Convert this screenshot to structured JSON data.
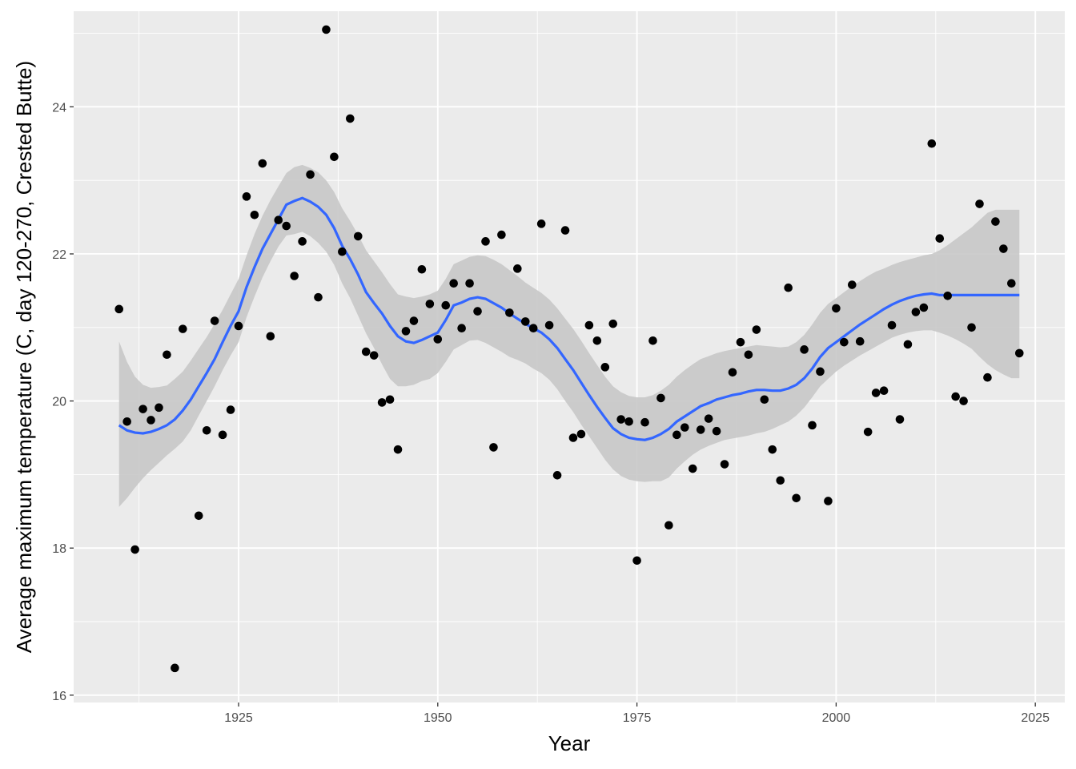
{
  "chart_data": {
    "type": "scatter",
    "title": "",
    "xlabel": "Year",
    "ylabel": "Average maximum temperature (C, day 120-270, Crested Butte)",
    "xlim": [
      1904.3,
      2028.7
    ],
    "ylim": [
      15.9,
      25.3
    ],
    "xticks": [
      "1925",
      "1950",
      "1975",
      "2000",
      "2025"
    ],
    "yticks": [
      "16",
      "18",
      "20",
      "22",
      "24"
    ],
    "grid": true,
    "legend": "none",
    "colors": {
      "panel": "#ebebeb",
      "grid": "#ffffff",
      "points": "#000000",
      "smooth": "#3366ff",
      "ribbon": "#c8c8c8"
    },
    "points": [
      [
        1910,
        21.25
      ],
      [
        1911,
        19.72
      ],
      [
        1912,
        17.98
      ],
      [
        1913,
        19.89
      ],
      [
        1914,
        19.74
      ],
      [
        1915,
        19.91
      ],
      [
        1916,
        20.63
      ],
      [
        1917,
        16.37
      ],
      [
        1918,
        20.98
      ],
      [
        1920,
        18.44
      ],
      [
        1921,
        19.6
      ],
      [
        1922,
        21.09
      ],
      [
        1923,
        19.54
      ],
      [
        1924,
        19.88
      ],
      [
        1925,
        21.02
      ],
      [
        1926,
        22.78
      ],
      [
        1927,
        22.53
      ],
      [
        1928,
        23.23
      ],
      [
        1929,
        20.88
      ],
      [
        1930,
        22.46
      ],
      [
        1931,
        22.38
      ],
      [
        1932,
        21.7
      ],
      [
        1933,
        22.17
      ],
      [
        1934,
        23.08
      ],
      [
        1935,
        21.41
      ],
      [
        1936,
        25.05
      ],
      [
        1937,
        23.32
      ],
      [
        1938,
        22.03
      ],
      [
        1939,
        23.84
      ],
      [
        1940,
        22.24
      ],
      [
        1941,
        20.67
      ],
      [
        1942,
        20.62
      ],
      [
        1943,
        19.98
      ],
      [
        1944,
        20.02
      ],
      [
        1945,
        19.34
      ],
      [
        1946,
        20.95
      ],
      [
        1947,
        21.09
      ],
      [
        1948,
        21.79
      ],
      [
        1949,
        21.32
      ],
      [
        1950,
        20.84
      ],
      [
        1951,
        21.3
      ],
      [
        1952,
        21.6
      ],
      [
        1953,
        20.99
      ],
      [
        1954,
        21.6
      ],
      [
        1955,
        21.22
      ],
      [
        1956,
        22.17
      ],
      [
        1957,
        19.37
      ],
      [
        1958,
        22.26
      ],
      [
        1959,
        21.2
      ],
      [
        1960,
        21.8
      ],
      [
        1961,
        21.08
      ],
      [
        1962,
        20.99
      ],
      [
        1963,
        22.41
      ],
      [
        1964,
        21.03
      ],
      [
        1965,
        18.99
      ],
      [
        1966,
        22.32
      ],
      [
        1967,
        19.5
      ],
      [
        1968,
        19.55
      ],
      [
        1969,
        21.03
      ],
      [
        1970,
        20.82
      ],
      [
        1971,
        20.46
      ],
      [
        1972,
        21.05
      ],
      [
        1973,
        19.75
      ],
      [
        1974,
        19.72
      ],
      [
        1975,
        17.83
      ],
      [
        1976,
        19.71
      ],
      [
        1977,
        20.82
      ],
      [
        1978,
        20.04
      ],
      [
        1979,
        18.31
      ],
      [
        1980,
        19.54
      ],
      [
        1981,
        19.64
      ],
      [
        1982,
        19.08
      ],
      [
        1983,
        19.61
      ],
      [
        1984,
        19.76
      ],
      [
        1985,
        19.59
      ],
      [
        1986,
        19.14
      ],
      [
        1987,
        20.39
      ],
      [
        1988,
        20.8
      ],
      [
        1989,
        20.63
      ],
      [
        1990,
        20.97
      ],
      [
        1991,
        20.02
      ],
      [
        1992,
        19.34
      ],
      [
        1993,
        18.92
      ],
      [
        1994,
        21.54
      ],
      [
        1995,
        18.68
      ],
      [
        1996,
        20.7
      ],
      [
        1997,
        19.67
      ],
      [
        1998,
        20.4
      ],
      [
        1999,
        18.64
      ],
      [
        2000,
        21.26
      ],
      [
        2001,
        20.8
      ],
      [
        2002,
        21.58
      ],
      [
        2003,
        20.81
      ],
      [
        2004,
        19.58
      ],
      [
        2005,
        20.11
      ],
      [
        2006,
        20.14
      ],
      [
        2007,
        21.03
      ],
      [
        2008,
        19.75
      ],
      [
        2009,
        20.77
      ],
      [
        2010,
        21.21
      ],
      [
        2011,
        21.27
      ],
      [
        2012,
        23.5
      ],
      [
        2013,
        22.21
      ],
      [
        2014,
        21.43
      ],
      [
        2015,
        20.06
      ],
      [
        2016,
        20.0
      ],
      [
        2017,
        21.0
      ],
      [
        2018,
        22.68
      ],
      [
        2019,
        20.32
      ],
      [
        2020,
        22.44
      ],
      [
        2021,
        22.07
      ],
      [
        2022,
        21.6
      ],
      [
        2023,
        20.65
      ]
    ],
    "smooth": {
      "x": [
        1910,
        1911,
        1912,
        1913,
        1914,
        1915,
        1916,
        1917,
        1918,
        1919,
        1920,
        1921,
        1922,
        1923,
        1924,
        1925,
        1926,
        1927,
        1928,
        1929,
        1930,
        1931,
        1932,
        1933,
        1934,
        1935,
        1936,
        1937,
        1938,
        1939,
        1940,
        1941,
        1942,
        1943,
        1944,
        1945,
        1946,
        1947,
        1948,
        1949,
        1950,
        1951,
        1952,
        1953,
        1954,
        1955,
        1956,
        1957,
        1958,
        1959,
        1960,
        1961,
        1962,
        1963,
        1964,
        1965,
        1966,
        1967,
        1968,
        1969,
        1970,
        1971,
        1972,
        1973,
        1974,
        1975,
        1976,
        1977,
        1978,
        1979,
        1980,
        1981,
        1982,
        1983,
        1984,
        1985,
        1986,
        1987,
        1988,
        1989,
        1990,
        1991,
        1992,
        1993,
        1994,
        1995,
        1996,
        1997,
        1998,
        1999,
        2000,
        2001,
        2002,
        2003,
        2004,
        2005,
        2006,
        2007,
        2008,
        2009,
        2010,
        2011,
        2012,
        2013,
        2014,
        2015,
        2016,
        2017,
        2018,
        2019,
        2020,
        2021,
        2022,
        2023
      ],
      "y": [
        19.67,
        19.6,
        19.57,
        19.56,
        19.58,
        19.62,
        19.67,
        19.75,
        19.87,
        20.02,
        20.2,
        20.38,
        20.57,
        20.8,
        21.02,
        21.22,
        21.55,
        21.82,
        22.07,
        22.27,
        22.47,
        22.67,
        22.72,
        22.76,
        22.71,
        22.64,
        22.53,
        22.35,
        22.11,
        21.93,
        21.72,
        21.48,
        21.33,
        21.19,
        21.02,
        20.88,
        20.81,
        20.79,
        20.83,
        20.88,
        20.93,
        21.1,
        21.3,
        21.34,
        21.39,
        21.41,
        21.39,
        21.33,
        21.27,
        21.19,
        21.12,
        21.05,
        20.99,
        20.93,
        20.84,
        20.72,
        20.57,
        20.42,
        20.25,
        20.08,
        19.92,
        19.77,
        19.63,
        19.55,
        19.5,
        19.48,
        19.47,
        19.5,
        19.55,
        19.62,
        19.72,
        19.79,
        19.86,
        19.93,
        19.97,
        20.02,
        20.05,
        20.08,
        20.1,
        20.13,
        20.15,
        20.15,
        20.14,
        20.14,
        20.17,
        20.22,
        20.31,
        20.44,
        20.6,
        20.72,
        20.8,
        20.88,
        20.96,
        21.04,
        21.11,
        21.18,
        21.25,
        21.31,
        21.36,
        21.4,
        21.43,
        21.45,
        21.46,
        21.44,
        21.44,
        21.44,
        21.44,
        21.44,
        21.44,
        21.44,
        21.44,
        21.44,
        21.44,
        21.44
      ],
      "ci_low": [
        18.56,
        18.68,
        18.82,
        18.95,
        19.06,
        19.16,
        19.26,
        19.35,
        19.45,
        19.6,
        19.8,
        20.0,
        20.2,
        20.42,
        20.62,
        20.8,
        21.14,
        21.42,
        21.68,
        21.9,
        22.1,
        22.25,
        22.27,
        22.3,
        22.24,
        22.15,
        22.03,
        21.85,
        21.6,
        21.4,
        21.16,
        20.92,
        20.72,
        20.5,
        20.3,
        20.2,
        20.2,
        20.22,
        20.27,
        20.3,
        20.38,
        20.53,
        20.7,
        20.76,
        20.82,
        20.83,
        20.79,
        20.73,
        20.67,
        20.6,
        20.56,
        20.51,
        20.44,
        20.38,
        20.29,
        20.16,
        20.0,
        19.85,
        19.68,
        19.52,
        19.36,
        19.2,
        19.07,
        18.98,
        18.93,
        18.91,
        18.9,
        18.91,
        18.91,
        18.96,
        19.08,
        19.18,
        19.27,
        19.34,
        19.39,
        19.43,
        19.47,
        19.49,
        19.51,
        19.53,
        19.56,
        19.58,
        19.62,
        19.67,
        19.72,
        19.8,
        19.91,
        20.05,
        20.2,
        20.3,
        20.4,
        20.48,
        20.55,
        20.62,
        20.68,
        20.74,
        20.8,
        20.86,
        20.9,
        20.93,
        20.95,
        20.96,
        20.96,
        20.93,
        20.89,
        20.84,
        20.78,
        20.71,
        20.6,
        20.5,
        20.42,
        20.36,
        20.31,
        20.31
      ],
      "ci_high": [
        20.81,
        20.53,
        20.33,
        20.22,
        20.18,
        20.19,
        20.21,
        20.3,
        20.4,
        20.55,
        20.71,
        20.87,
        21.05,
        21.24,
        21.45,
        21.66,
        21.98,
        22.27,
        22.52,
        22.73,
        22.92,
        23.1,
        23.18,
        23.21,
        23.17,
        23.11,
        23.0,
        22.84,
        22.62,
        22.45,
        22.26,
        22.05,
        21.9,
        21.75,
        21.59,
        21.45,
        21.42,
        21.4,
        21.42,
        21.45,
        21.5,
        21.66,
        21.86,
        21.91,
        21.96,
        21.98,
        21.97,
        21.92,
        21.86,
        21.78,
        21.7,
        21.61,
        21.54,
        21.47,
        21.38,
        21.26,
        21.12,
        20.98,
        20.82,
        20.65,
        20.49,
        20.33,
        20.2,
        20.12,
        20.07,
        20.05,
        20.05,
        20.08,
        20.14,
        20.22,
        20.33,
        20.42,
        20.5,
        20.57,
        20.61,
        20.65,
        20.68,
        20.7,
        20.72,
        20.74,
        20.76,
        20.75,
        20.74,
        20.73,
        20.74,
        20.8,
        20.9,
        21.04,
        21.2,
        21.32,
        21.4,
        21.48,
        21.56,
        21.63,
        21.7,
        21.76,
        21.8,
        21.85,
        21.89,
        21.92,
        21.95,
        21.98,
        22.0,
        22.05,
        22.12,
        22.2,
        22.28,
        22.36,
        22.46,
        22.56,
        22.6,
        22.6,
        22.6,
        22.6
      ]
    }
  }
}
